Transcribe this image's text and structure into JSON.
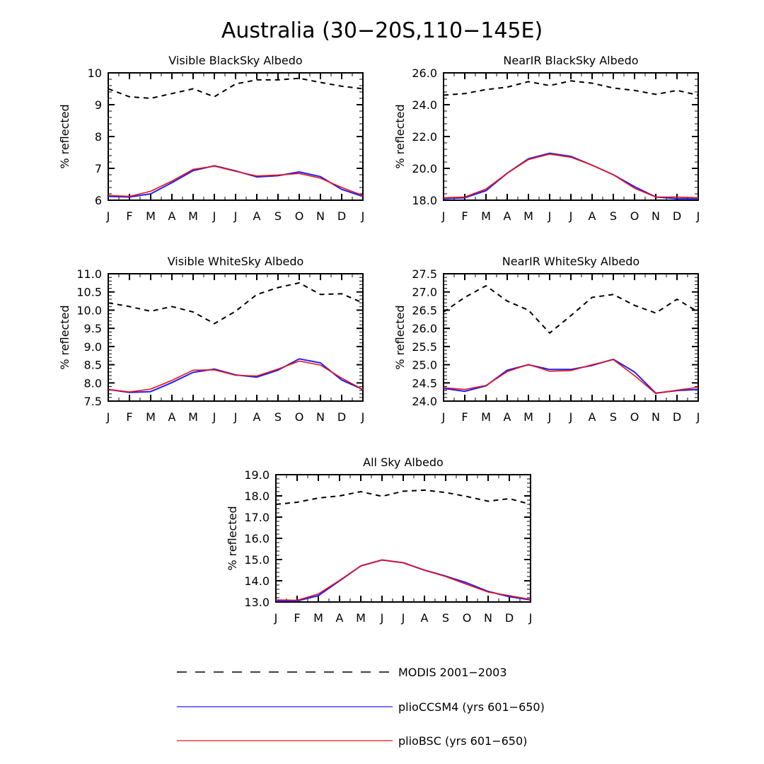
{
  "figure": {
    "title": "Australia (30−20S,110−145E)"
  },
  "legend": {
    "entries": [
      {
        "key": "modis",
        "label": "MODIS 2001−2003",
        "color": "#000000",
        "style": "dashed"
      },
      {
        "key": "ccsm4",
        "label": "plioCCSM4 (yrs 601−650)",
        "color": "#0000ff",
        "style": "solid"
      },
      {
        "key": "bsc",
        "label": "plioBSC (yrs 601−650)",
        "color": "#ff0000",
        "style": "solid"
      }
    ]
  },
  "chart_data": [
    {
      "type": "line",
      "title": "Visible BlackSky Albedo",
      "xlabel": "",
      "ylabel": "% reflected",
      "categories": [
        "J",
        "F",
        "M",
        "A",
        "M",
        "J",
        "J",
        "A",
        "S",
        "O",
        "N",
        "D",
        "J"
      ],
      "ylim": [
        6,
        10
      ],
      "yticks": [
        "6",
        "7",
        "8",
        "9",
        "10"
      ],
      "series": [
        {
          "name": "MODIS 2001−2003",
          "values": [
            9.5,
            9.25,
            9.2,
            9.35,
            9.5,
            9.25,
            9.65,
            9.78,
            9.78,
            9.83,
            9.7,
            9.58,
            9.5
          ]
        },
        {
          "name": "plioCCSM4 (yrs 601−650)",
          "values": [
            6.12,
            6.1,
            6.2,
            6.55,
            6.93,
            7.08,
            6.92,
            6.73,
            6.77,
            6.89,
            6.74,
            6.34,
            6.12
          ]
        },
        {
          "name": "plioBSC (yrs 601−650)",
          "values": [
            6.15,
            6.12,
            6.28,
            6.6,
            6.97,
            7.07,
            6.91,
            6.76,
            6.79,
            6.84,
            6.69,
            6.4,
            6.15
          ]
        }
      ]
    },
    {
      "type": "line",
      "title": "NearIR BlackSky Albedo",
      "xlabel": "",
      "ylabel": "% reflected",
      "categories": [
        "J",
        "F",
        "M",
        "A",
        "M",
        "J",
        "J",
        "A",
        "S",
        "O",
        "N",
        "D",
        "J"
      ],
      "ylim": [
        18,
        26
      ],
      "yticks": [
        "18.0",
        "20.0",
        "22.0",
        "24.0",
        "26.0"
      ],
      "series": [
        {
          "name": "MODIS 2001−2003",
          "values": [
            24.6,
            24.7,
            24.95,
            25.1,
            25.45,
            25.2,
            25.5,
            25.35,
            25.05,
            24.9,
            24.65,
            24.9,
            24.6
          ]
        },
        {
          "name": "plioCCSM4 (yrs 601−650)",
          "values": [
            18.1,
            18.15,
            18.6,
            19.7,
            20.6,
            20.95,
            20.75,
            20.2,
            19.6,
            18.85,
            18.2,
            18.1,
            18.1
          ]
        },
        {
          "name": "plioBSC (yrs 601−650)",
          "values": [
            18.15,
            18.2,
            18.7,
            19.7,
            20.55,
            20.9,
            20.7,
            20.2,
            19.6,
            18.75,
            18.2,
            18.2,
            18.15
          ]
        }
      ]
    },
    {
      "type": "line",
      "title": "Visible WhiteSky Albedo",
      "xlabel": "",
      "ylabel": "% reflected",
      "categories": [
        "J",
        "F",
        "M",
        "A",
        "M",
        "J",
        "J",
        "A",
        "S",
        "O",
        "N",
        "D",
        "J"
      ],
      "ylim": [
        7.5,
        11.0
      ],
      "yticks": [
        "7.5",
        "8.0",
        "8.5",
        "9.0",
        "9.5",
        "10.0",
        "10.5",
        "11.0"
      ],
      "series": [
        {
          "name": "MODIS 2001−2003",
          "values": [
            10.2,
            10.1,
            9.97,
            10.1,
            9.95,
            9.63,
            9.97,
            10.43,
            10.62,
            10.75,
            10.43,
            10.45,
            10.2
          ]
        },
        {
          "name": "plioCCSM4 (yrs 601−650)",
          "values": [
            7.82,
            7.74,
            7.76,
            8.01,
            8.29,
            8.38,
            8.22,
            8.16,
            8.35,
            8.66,
            8.55,
            8.08,
            7.82
          ]
        },
        {
          "name": "plioBSC (yrs 601−650)",
          "values": [
            7.82,
            7.75,
            7.83,
            8.07,
            8.35,
            8.36,
            8.21,
            8.19,
            8.38,
            8.6,
            8.49,
            8.13,
            7.82
          ]
        }
      ]
    },
    {
      "type": "line",
      "title": "NearIR WhiteSky Albedo",
      "xlabel": "",
      "ylabel": "% reflected",
      "categories": [
        "J",
        "F",
        "M",
        "A",
        "M",
        "J",
        "J",
        "A",
        "S",
        "O",
        "N",
        "D",
        "J"
      ],
      "ylim": [
        24.0,
        27.5
      ],
      "yticks": [
        "24.0",
        "24.5",
        "25.0",
        "25.5",
        "26.0",
        "26.5",
        "27.0",
        "27.5"
      ],
      "series": [
        {
          "name": "MODIS 2001−2003",
          "values": [
            26.45,
            26.85,
            27.17,
            26.75,
            26.5,
            25.87,
            26.35,
            26.85,
            26.93,
            26.63,
            26.42,
            26.8,
            26.45
          ]
        },
        {
          "name": "plioCCSM4 (yrs 601−650)",
          "values": [
            24.35,
            24.27,
            24.42,
            24.85,
            25.0,
            24.87,
            24.87,
            24.98,
            25.15,
            24.8,
            24.22,
            24.29,
            24.32
          ]
        },
        {
          "name": "plioBSC (yrs 601−650)",
          "values": [
            24.37,
            24.32,
            24.43,
            24.81,
            25.01,
            24.82,
            24.84,
            25.0,
            25.14,
            24.7,
            24.21,
            24.3,
            24.38
          ]
        }
      ]
    },
    {
      "type": "line",
      "title": "All Sky Albedo",
      "xlabel": "",
      "ylabel": "% reflected",
      "categories": [
        "J",
        "F",
        "M",
        "A",
        "M",
        "J",
        "J",
        "A",
        "S",
        "O",
        "N",
        "D",
        "J"
      ],
      "ylim": [
        13.0,
        19.0
      ],
      "yticks": [
        "13.0",
        "14.0",
        "15.0",
        "16.0",
        "17.0",
        "18.0",
        "19.0"
      ],
      "series": [
        {
          "name": "MODIS 2001−2003",
          "values": [
            17.6,
            17.7,
            17.9,
            18.0,
            18.2,
            17.98,
            18.22,
            18.27,
            18.16,
            17.97,
            17.75,
            17.87,
            17.6
          ]
        },
        {
          "name": "plioCCSM4 (yrs 601−650)",
          "values": [
            13.05,
            13.05,
            13.3,
            14.0,
            14.7,
            14.98,
            14.85,
            14.5,
            14.22,
            13.9,
            13.5,
            13.25,
            13.1
          ]
        },
        {
          "name": "plioBSC (yrs 601−650)",
          "values": [
            13.1,
            13.08,
            13.38,
            14.02,
            14.7,
            14.98,
            14.85,
            14.5,
            14.2,
            13.83,
            13.47,
            13.3,
            13.12
          ]
        }
      ]
    }
  ]
}
